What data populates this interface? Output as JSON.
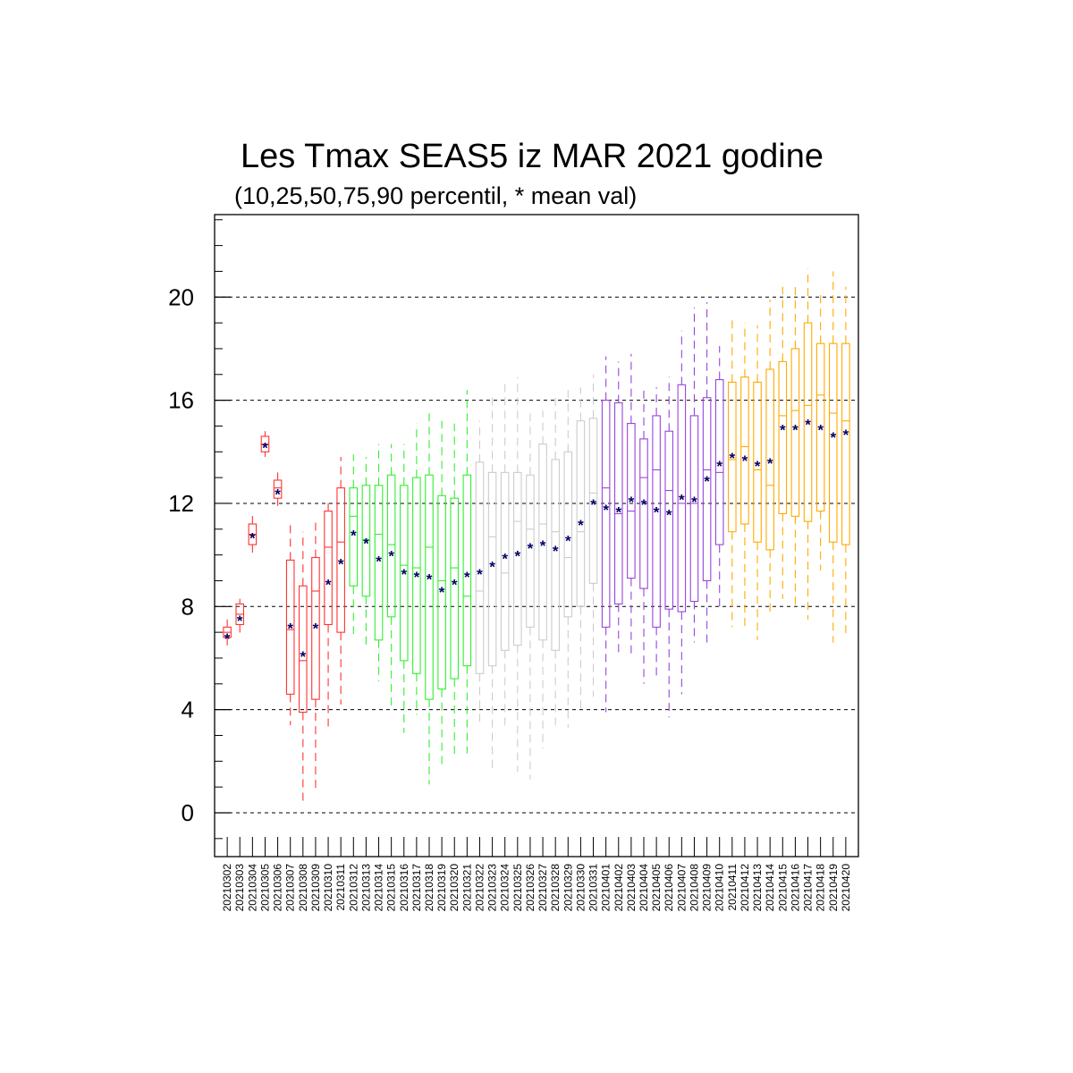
{
  "chart_data": {
    "type": "box",
    "title": "Les Tmax SEAS5 iz MAR 2021 godine",
    "subtitle": "(10,25,50,75,90 percentil, * mean val)",
    "mean_marker": "*",
    "ylim": [
      -1.7,
      23.2
    ],
    "yticks": [
      0,
      4,
      8,
      12,
      16,
      20
    ],
    "ytick_labels": [
      "0",
      "4",
      "8",
      "12",
      "16",
      "20"
    ],
    "grid": "dashed horizontal at major ticks",
    "categories": [
      "20210302",
      "20210303",
      "20210304",
      "20210305",
      "20210306",
      "20210307",
      "20210308",
      "20210309",
      "20210310",
      "20210311",
      "20210312",
      "20210313",
      "20210314",
      "20210315",
      "20210316",
      "20210317",
      "20210318",
      "20210319",
      "20210320",
      "20210321",
      "20210322",
      "20210323",
      "20210324",
      "20210325",
      "20210326",
      "20210327",
      "20210328",
      "20210329",
      "20210330",
      "20210331",
      "20210401",
      "20210402",
      "20210403",
      "20210404",
      "20210405",
      "20210406",
      "20210407",
      "20210408",
      "20210409",
      "20210410",
      "20210411",
      "20210412",
      "20210413",
      "20210414",
      "20210415",
      "20210416",
      "20210417",
      "20210418",
      "20210419",
      "20210420"
    ],
    "colors": {
      "week1": "#ff3333",
      "week2": "#33ee33",
      "week3": "#cccccc",
      "week4": "#9944dd",
      "week5": "#ffaa00",
      "mean": "#000066",
      "grid": "#000000"
    },
    "series": [
      {
        "color_group": "week1",
        "p10": [
          6.3,
          6.9,
          10.0,
          13.8,
          11.9,
          3.4,
          0.3,
          0.9,
          3.3,
          4.2
        ],
        "p25": [
          6.8,
          7.3,
          10.4,
          14.0,
          12.2,
          4.6,
          3.9,
          4.4,
          7.3,
          7.0
        ],
        "p50": [
          7.0,
          7.7,
          10.8,
          14.3,
          12.6,
          7.1,
          5.9,
          8.6,
          10.3,
          10.5
        ],
        "p75": [
          7.2,
          8.1,
          11.2,
          14.6,
          12.9,
          9.8,
          8.8,
          9.9,
          11.7,
          12.6
        ],
        "p90": [
          7.5,
          8.3,
          11.6,
          14.8,
          13.2,
          11.3,
          10.9,
          11.3,
          12.1,
          13.8
        ],
        "mean": [
          6.9,
          7.6,
          10.8,
          14.3,
          12.5,
          7.3,
          6.2,
          7.3,
          9.0,
          9.8
        ]
      },
      {
        "color_group": "week2",
        "p10": [
          6.9,
          6.4,
          5.1,
          4.0,
          3.1,
          3.8,
          1.1,
          1.8,
          2.1,
          2.3
        ],
        "p25": [
          8.8,
          8.4,
          6.7,
          7.6,
          5.9,
          5.4,
          4.4,
          4.8,
          5.2,
          5.7
        ],
        "p50": [
          11.5,
          10.6,
          10.8,
          10.4,
          9.6,
          9.5,
          10.3,
          9.0,
          9.5,
          8.4
        ],
        "p75": [
          12.6,
          12.7,
          12.7,
          13.1,
          12.7,
          13.0,
          13.1,
          12.3,
          12.2,
          13.1
        ],
        "p90": [
          13.9,
          13.8,
          14.3,
          14.3,
          14.3,
          15.1,
          15.5,
          15.2,
          15.1,
          16.4
        ],
        "mean": [
          10.9,
          10.6,
          9.9,
          10.1,
          9.4,
          9.3,
          9.2,
          8.7,
          9.0,
          9.3
        ]
      },
      {
        "color_group": "week3",
        "p10": [
          3.4,
          1.7,
          3.2,
          1.6,
          1.3,
          2.5,
          3.3,
          3.3,
          4.0,
          4.5
        ],
        "p25": [
          5.4,
          5.7,
          6.3,
          6.5,
          7.2,
          6.7,
          6.3,
          7.6,
          8.0,
          8.9
        ],
        "p50": [
          8.6,
          10.7,
          9.3,
          11.3,
          11.0,
          11.2,
          10.9,
          9.9,
          10.9,
          12.4
        ],
        "p75": [
          13.6,
          13.2,
          13.2,
          13.2,
          13.1,
          14.3,
          13.7,
          14.0,
          15.2,
          15.3
        ],
        "p90": [
          15.2,
          16.3,
          16.8,
          16.9,
          15.5,
          15.6,
          16.2,
          16.5,
          16.5,
          17.0
        ],
        "mean": [
          9.4,
          9.7,
          10.0,
          10.1,
          10.4,
          10.5,
          10.3,
          10.7,
          11.3,
          12.1
        ]
      },
      {
        "color_group": "week4",
        "p10": [
          3.9,
          6.1,
          6.1,
          5.0,
          5.2,
          3.7,
          4.6,
          6.6,
          6.4,
          7.8
        ],
        "p25": [
          7.2,
          8.1,
          9.1,
          8.7,
          7.2,
          7.9,
          7.8,
          8.2,
          9.0,
          10.4
        ],
        "p50": [
          12.6,
          11.6,
          11.7,
          13.0,
          13.3,
          12.5,
          12.0,
          12.0,
          13.3,
          13.2
        ],
        "p75": [
          16.0,
          15.9,
          15.1,
          14.5,
          15.4,
          14.8,
          16.6,
          15.4,
          16.1,
          16.8
        ],
        "p90": [
          17.7,
          17.5,
          17.8,
          16.4,
          16.5,
          16.9,
          18.7,
          19.6,
          19.8,
          18.1
        ],
        "mean": [
          11.9,
          11.8,
          12.2,
          12.1,
          11.8,
          11.7,
          12.3,
          12.2,
          13.0,
          13.6
        ]
      },
      {
        "color_group": "week5",
        "p10": [
          7.2,
          7.2,
          6.7,
          7.8,
          8.3,
          7.9,
          7.5,
          9.4,
          6.6,
          6.9
        ],
        "p25": [
          10.9,
          11.2,
          10.5,
          10.2,
          11.6,
          11.5,
          11.3,
          11.7,
          10.5,
          10.4
        ],
        "p50": [
          13.7,
          14.2,
          13.3,
          12.7,
          15.4,
          15.6,
          15.8,
          16.2,
          15.5,
          15.2
        ],
        "p75": [
          16.7,
          16.9,
          16.7,
          17.2,
          17.5,
          18.0,
          19.0,
          18.2,
          18.2,
          18.2
        ],
        "p90": [
          19.3,
          19.0,
          18.9,
          19.9,
          20.4,
          20.5,
          21.1,
          20.1,
          21.0,
          20.4
        ],
        "mean": [
          13.9,
          13.8,
          13.6,
          13.7,
          15.0,
          15.0,
          15.2,
          15.0,
          14.7,
          14.8
        ]
      }
    ]
  }
}
